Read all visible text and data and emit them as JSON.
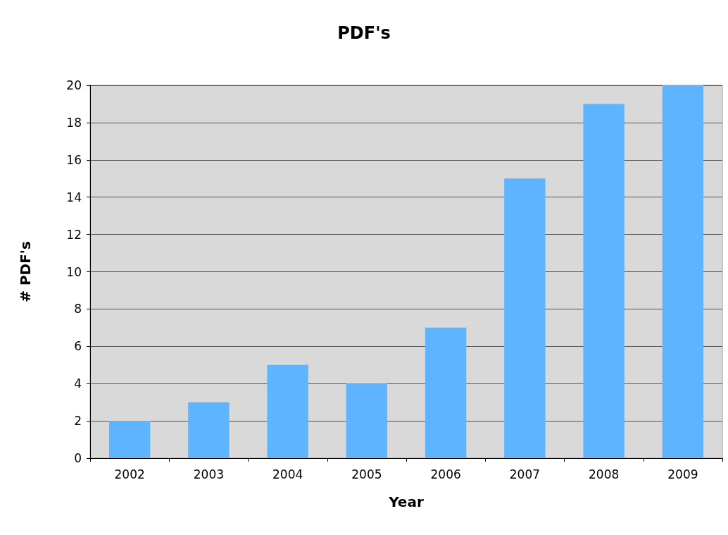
{
  "chart_data": {
    "type": "bar",
    "title": "PDF's",
    "xlabel": "Year",
    "ylabel": "# PDF's",
    "categories": [
      "2002",
      "2003",
      "2004",
      "2005",
      "2006",
      "2007",
      "2008",
      "2009"
    ],
    "values": [
      2,
      3,
      5,
      4,
      7,
      15,
      19,
      20
    ],
    "color": "#5fb4ff",
    "ylim": [
      0,
      20
    ],
    "yticks": [
      0,
      2,
      4,
      6,
      8,
      10,
      12,
      14,
      16,
      18,
      20
    ],
    "grid": "y"
  }
}
